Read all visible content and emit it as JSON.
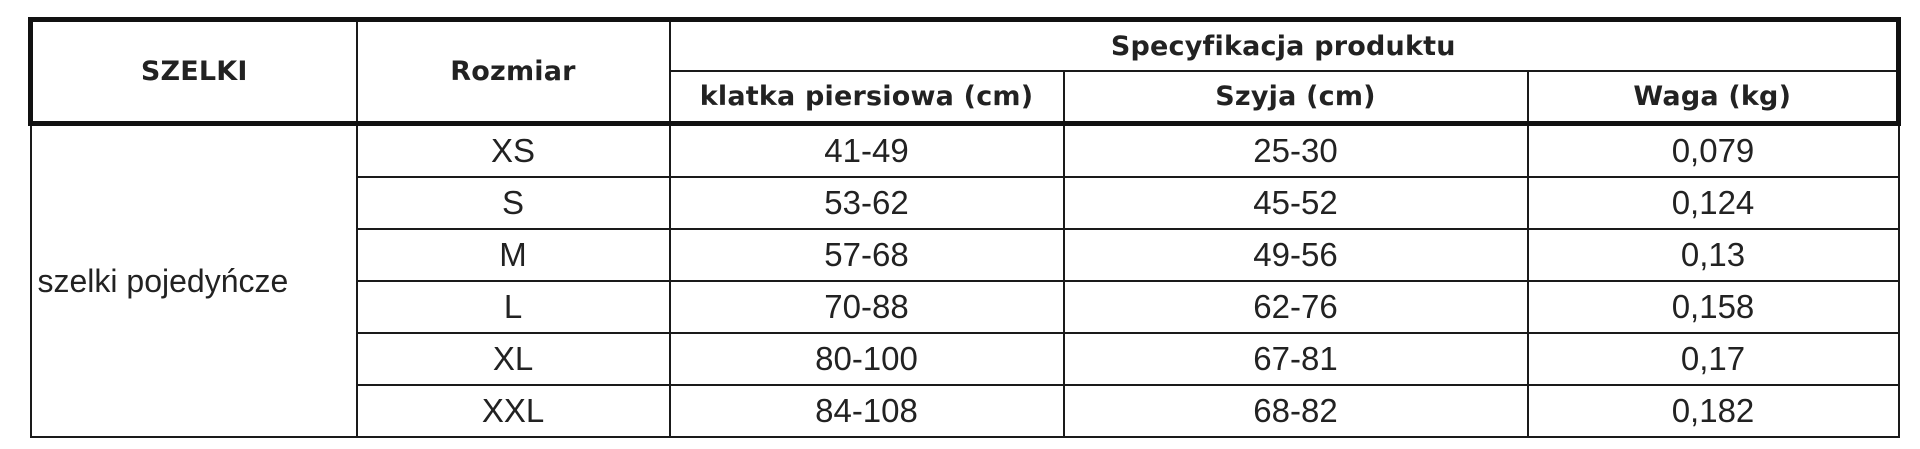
{
  "table": {
    "header": {
      "col_product": "SZELKI",
      "col_size": "Rozmiar",
      "group_spec": "Specyfikacja produktu",
      "col_chest": "klatka piersiowa (cm)",
      "col_neck": "Szyja (cm)",
      "col_weight": "Waga (kg)"
    },
    "group_label": "szelki pojedyńcze",
    "rows": [
      {
        "size": "XS",
        "chest": "41-49",
        "neck": "25-30",
        "weight": "0,079"
      },
      {
        "size": "S",
        "chest": "53-62",
        "neck": "45-52",
        "weight": "0,124"
      },
      {
        "size": "M",
        "chest": "57-68",
        "neck": "49-56",
        "weight": "0,13"
      },
      {
        "size": "L",
        "chest": "70-88",
        "neck": "62-76",
        "weight": "0,158"
      },
      {
        "size": "XL",
        "chest": "80-100",
        "neck": "67-81",
        "weight": "0,17"
      },
      {
        "size": "XXL",
        "chest": "84-108",
        "neck": "68-82",
        "weight": "0,182"
      }
    ]
  }
}
